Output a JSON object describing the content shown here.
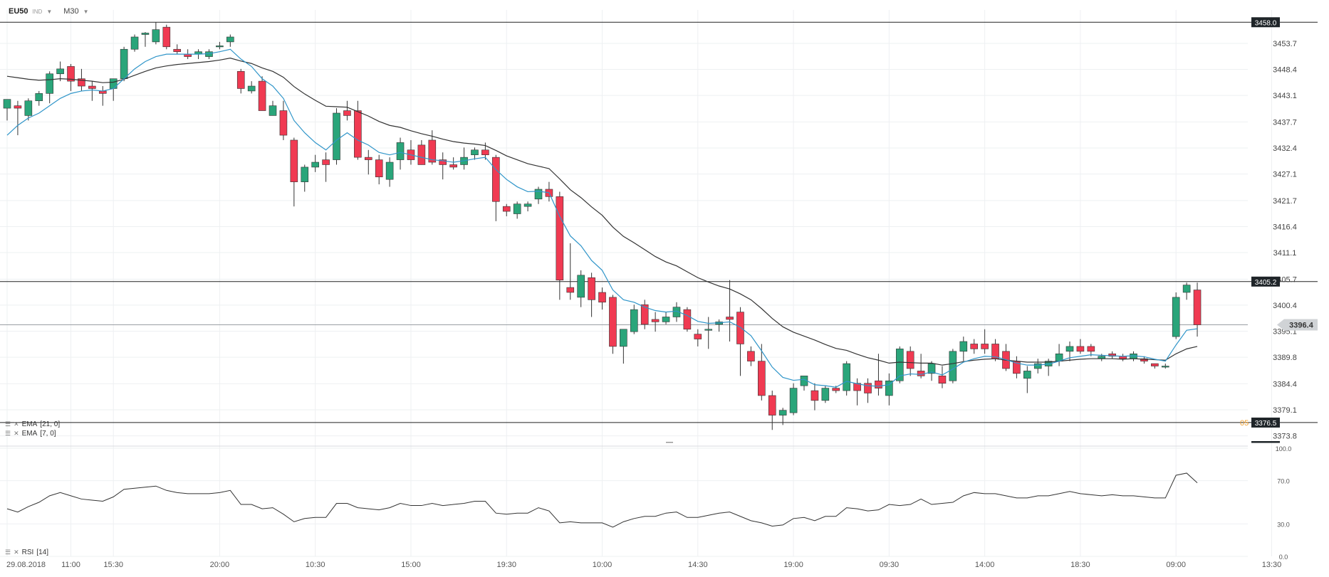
{
  "toolbar": {
    "symbol": "EU50",
    "type": "IND",
    "timeframe": "M30"
  },
  "indicators": [
    {
      "name": "EMA",
      "params": "[21, 0]",
      "color": "#333333"
    },
    {
      "name": "EMA",
      "params": "[7, 0]",
      "color": "#2f95c9"
    }
  ],
  "rsi_label": {
    "name": "RSI",
    "params": "[14]"
  },
  "colors": {
    "bull": "#2aa57a",
    "bear": "#f03a52",
    "ema7": "#2f95c9",
    "ema21": "#333333",
    "grid": "#eef0f2",
    "rsi": "#333333"
  },
  "orange_tag": "05",
  "chart_data": [
    {
      "type": "candlestick",
      "title": "EU50",
      "y_ticks": [
        3453.7,
        3448.4,
        3443.1,
        3437.7,
        3432.4,
        3427.1,
        3421.7,
        3416.4,
        3411.1,
        3405.7,
        3400.4,
        3395.1,
        3389.8,
        3384.4,
        3379.1,
        3373.8
      ],
      "y_tick_labels": [
        "3453.7",
        "3448.4",
        "3443.1",
        "3437.7",
        "3432.4",
        "3427.1",
        "3421.7",
        "3416.4",
        "3411.1",
        "3405.7",
        "3400.4",
        "3395.1",
        "3389.8",
        "3384.4",
        "3379.1",
        "3373.8"
      ],
      "ylim": [
        3372.0,
        3460.5
      ],
      "x_labels": [
        "29.08.2018",
        "11:00",
        "15:30",
        "20:00",
        "10:30",
        "15:00",
        "19:30",
        "10:00",
        "14:30",
        "19:00",
        "09:30",
        "14:00",
        "18:30",
        "09:00",
        "13:30"
      ],
      "x_label_candle_index": [
        0,
        6,
        10,
        20,
        29,
        38,
        47,
        56,
        65,
        74,
        83,
        92,
        101,
        110,
        119
      ],
      "grid": true,
      "horizontal_lines": [
        {
          "value": 3458.0,
          "label": "3458.0",
          "style": "solid"
        },
        {
          "value": 3405.2,
          "label": "3405.2",
          "style": "solid"
        },
        {
          "value": 3376.5,
          "label": "3376.5",
          "style": "solid"
        },
        {
          "value": 3396.4,
          "label": "3396.4",
          "style": "current"
        }
      ],
      "candles": [
        [
          3440.5,
          3442.2,
          3438.0,
          3442.3
        ],
        [
          3441.0,
          3442.0,
          3435.0,
          3440.5
        ],
        [
          3439.0,
          3442.5,
          3438.0,
          3442.0
        ],
        [
          3442.0,
          3444.0,
          3441.0,
          3443.5
        ],
        [
          3443.5,
          3448.0,
          3441.5,
          3447.5
        ],
        [
          3447.5,
          3450.0,
          3446.0,
          3448.5
        ],
        [
          3449.0,
          3449.5,
          3444.0,
          3446.0
        ],
        [
          3446.5,
          3448.5,
          3444.0,
          3445.0
        ],
        [
          3445.0,
          3446.0,
          3442.0,
          3444.5
        ],
        [
          3444.0,
          3445.0,
          3441.0,
          3443.5
        ],
        [
          3444.5,
          3446.5,
          3442.0,
          3446.5
        ],
        [
          3446.5,
          3453.0,
          3446.0,
          3452.5
        ],
        [
          3452.5,
          3455.5,
          3452.0,
          3455.0
        ],
        [
          3455.5,
          3456.0,
          3453.0,
          3455.8
        ],
        [
          3454.0,
          3458.0,
          3453.5,
          3456.5
        ],
        [
          3457.0,
          3457.5,
          3452.5,
          3453.0
        ],
        [
          3452.5,
          3453.5,
          3451.5,
          3452.0
        ],
        [
          3451.5,
          3452.5,
          3450.5,
          3451.0
        ],
        [
          3451.5,
          3452.5,
          3450.5,
          3452.0
        ],
        [
          3451.0,
          3452.5,
          3450.5,
          3452.0
        ],
        [
          3453.0,
          3454.0,
          3452.5,
          3453.2
        ],
        [
          3454.0,
          3455.5,
          3453.0,
          3455.0
        ],
        [
          3448.0,
          3448.5,
          3443.5,
          3444.5
        ],
        [
          3444.0,
          3446.0,
          3443.5,
          3445.0
        ],
        [
          3446.0,
          3447.0,
          3440.0,
          3440.0
        ],
        [
          3439.0,
          3442.0,
          3439.0,
          3441.0
        ],
        [
          3440.0,
          3442.0,
          3434.0,
          3435.0
        ],
        [
          3434.0,
          3434.5,
          3420.5,
          3425.5
        ],
        [
          3425.5,
          3429.0,
          3423.5,
          3428.5
        ],
        [
          3428.5,
          3431.0,
          3427.5,
          3429.5
        ],
        [
          3430.0,
          3431.5,
          3425.5,
          3429.0
        ],
        [
          3430.0,
          3440.5,
          3429.0,
          3439.5
        ],
        [
          3440.0,
          3442.0,
          3438.0,
          3439.0
        ],
        [
          3440.0,
          3442.0,
          3430.0,
          3430.5
        ],
        [
          3430.5,
          3432.0,
          3427.0,
          3430.0
        ],
        [
          3430.0,
          3431.0,
          3425.0,
          3426.5
        ],
        [
          3426.0,
          3430.5,
          3424.5,
          3429.5
        ],
        [
          3430.0,
          3434.5,
          3428.0,
          3433.5
        ],
        [
          3432.0,
          3434.0,
          3429.0,
          3430.0
        ],
        [
          3433.0,
          3434.0,
          3429.0,
          3429.0
        ],
        [
          3434.0,
          3436.0,
          3429.0,
          3429.5
        ],
        [
          3430.0,
          3431.5,
          3426.0,
          3429.0
        ],
        [
          3429.0,
          3430.5,
          3428.0,
          3428.5
        ],
        [
          3429.0,
          3432.5,
          3428.0,
          3430.5
        ],
        [
          3431.0,
          3432.5,
          3430.0,
          3432.0
        ],
        [
          3432.0,
          3433.5,
          3430.0,
          3431.0
        ],
        [
          3430.5,
          3431.0,
          3417.5,
          3421.5
        ],
        [
          3420.5,
          3421.0,
          3418.5,
          3419.5
        ],
        [
          3419.0,
          3421.5,
          3418.0,
          3421.0
        ],
        [
          3420.5,
          3421.5,
          3419.5,
          3421.0
        ],
        [
          3422.0,
          3424.5,
          3421.0,
          3424.0
        ],
        [
          3424.0,
          3425.5,
          3421.5,
          3422.5
        ],
        [
          3422.5,
          3423.5,
          3401.5,
          3405.5
        ],
        [
          3404.0,
          3413.0,
          3401.5,
          3403.0
        ],
        [
          3402.0,
          3407.5,
          3400.0,
          3406.5
        ],
        [
          3406.0,
          3407.0,
          3398.0,
          3401.5
        ],
        [
          3403.0,
          3404.0,
          3399.5,
          3401.0
        ],
        [
          3402.0,
          3402.5,
          3390.5,
          3392.0
        ],
        [
          3392.0,
          3395.5,
          3388.5,
          3395.5
        ],
        [
          3395.0,
          3400.5,
          3394.5,
          3399.5
        ],
        [
          3400.5,
          3401.5,
          3395.5,
          3396.5
        ],
        [
          3397.5,
          3399.0,
          3395.0,
          3397.0
        ],
        [
          3397.0,
          3399.0,
          3396.5,
          3398.0
        ],
        [
          3398.0,
          3401.0,
          3397.0,
          3400.0
        ],
        [
          3399.5,
          3400.0,
          3395.0,
          3395.5
        ],
        [
          3394.5,
          3395.5,
          3392.0,
          3393.5
        ],
        [
          3395.5,
          3398.0,
          3391.5,
          3395.5
        ],
        [
          3396.5,
          3397.5,
          3395.0,
          3397.0
        ],
        [
          3398.0,
          3405.5,
          3393.0,
          3397.5
        ],
        [
          3399.0,
          3400.0,
          3386.0,
          3392.5
        ],
        [
          3391.0,
          3392.0,
          3388.0,
          3389.0
        ],
        [
          3389.0,
          3392.5,
          3381.0,
          3382.0
        ],
        [
          3382.0,
          3383.0,
          3375.0,
          3378.0
        ],
        [
          3378.0,
          3379.5,
          3376.0,
          3379.0
        ],
        [
          3378.5,
          3384.5,
          3378.0,
          3383.5
        ],
        [
          3384.0,
          3386.0,
          3383.0,
          3386.0
        ],
        [
          3383.0,
          3384.5,
          3379.0,
          3381.0
        ],
        [
          3381.0,
          3384.0,
          3380.5,
          3383.5
        ],
        [
          3383.5,
          3384.0,
          3382.5,
          3383.0
        ],
        [
          3383.0,
          3389.0,
          3382.0,
          3388.5
        ],
        [
          3384.5,
          3385.5,
          3380.0,
          3383.0
        ],
        [
          3384.5,
          3385.5,
          3380.5,
          3382.5
        ],
        [
          3385.0,
          3390.5,
          3382.0,
          3383.5
        ],
        [
          3382.0,
          3386.5,
          3380.0,
          3385.0
        ],
        [
          3385.0,
          3392.0,
          3384.5,
          3391.5
        ],
        [
          3391.0,
          3392.0,
          3386.0,
          3387.5
        ],
        [
          3387.0,
          3390.5,
          3385.5,
          3386.0
        ],
        [
          3386.5,
          3389.0,
          3385.0,
          3388.5
        ],
        [
          3386.0,
          3388.0,
          3383.5,
          3384.5
        ],
        [
          3385.0,
          3391.5,
          3384.5,
          3391.0
        ],
        [
          3391.0,
          3394.0,
          3389.0,
          3393.0
        ],
        [
          3392.5,
          3393.5,
          3390.5,
          3391.5
        ],
        [
          3392.5,
          3395.5,
          3390.5,
          3391.5
        ],
        [
          3392.5,
          3393.5,
          3389.0,
          3389.5
        ],
        [
          3391.0,
          3392.5,
          3387.0,
          3387.5
        ],
        [
          3389.0,
          3390.0,
          3385.5,
          3386.5
        ],
        [
          3385.5,
          3388.0,
          3382.5,
          3387.0
        ],
        [
          3387.5,
          3389.5,
          3386.5,
          3388.5
        ],
        [
          3388.0,
          3389.5,
          3386.0,
          3389.0
        ],
        [
          3389.0,
          3392.5,
          3388.0,
          3390.5
        ],
        [
          3391.0,
          3393.0,
          3389.0,
          3392.0
        ],
        [
          3392.0,
          3393.5,
          3390.5,
          3391.0
        ],
        [
          3392.0,
          3392.5,
          3390.0,
          3391.0
        ],
        [
          3389.5,
          3390.5,
          3389.0,
          3390.0
        ],
        [
          3390.5,
          3391.0,
          3389.5,
          3390.0
        ],
        [
          3390.0,
          3390.5,
          3389.0,
          3389.5
        ],
        [
          3389.5,
          3391.0,
          3389.0,
          3390.5
        ],
        [
          3389.5,
          3390.0,
          3388.5,
          3389.0
        ],
        [
          3388.5,
          3388.5,
          3387.5,
          3388.0
        ],
        [
          3388.0,
          3388.5,
          3387.5,
          3388.0
        ],
        [
          3394.0,
          3403.0,
          3393.5,
          3402.0
        ],
        [
          3403.0,
          3405.0,
          3401.5,
          3404.5
        ],
        [
          3403.5,
          3405.0,
          3394.0,
          3396.4
        ]
      ],
      "ema_7": [
        3435.0,
        3437.0,
        3438.5,
        3439.5,
        3441.0,
        3442.5,
        3443.5,
        3444.0,
        3444.2,
        3444.0,
        3444.5,
        3446.5,
        3448.5,
        3450.0,
        3451.0,
        3451.5,
        3451.5,
        3451.5,
        3451.5,
        3451.6,
        3452.0,
        3452.5,
        3450.5,
        3449.0,
        3446.5,
        3445.0,
        3442.5,
        3438.0,
        3435.5,
        3433.5,
        3432.0,
        3434.0,
        3435.5,
        3434.0,
        3433.0,
        3431.5,
        3431.0,
        3431.5,
        3431.0,
        3430.5,
        3430.0,
        3429.8,
        3429.5,
        3429.8,
        3430.2,
        3430.5,
        3428.0,
        3426.0,
        3424.5,
        3423.5,
        3423.6,
        3423.3,
        3418.5,
        3414.5,
        3412.5,
        3409.5,
        3407.5,
        3403.5,
        3401.5,
        3401.0,
        3400.0,
        3399.3,
        3399.0,
        3399.2,
        3398.3,
        3397.1,
        3396.7,
        3396.8,
        3397.0,
        3395.9,
        3394.2,
        3391.1,
        3387.8,
        3385.7,
        3385.1,
        3385.3,
        3384.2,
        3384.0,
        3383.7,
        3384.9,
        3384.4,
        3384.0,
        3383.9,
        3384.2,
        3386.0,
        3386.4,
        3386.3,
        3386.8,
        3386.2,
        3387.4,
        3388.8,
        3389.5,
        3390.0,
        3389.9,
        3389.3,
        3388.6,
        3388.2,
        3388.2,
        3388.4,
        3389.0,
        3389.7,
        3390.0,
        3390.3,
        3390.2,
        3390.1,
        3390.0,
        3390.1,
        3389.9,
        3389.4,
        3389.0,
        3392.3,
        3395.3,
        3395.6
      ],
      "ema_21": [
        3447.0,
        3446.7,
        3446.4,
        3446.2,
        3446.3,
        3446.5,
        3446.4,
        3446.2,
        3446.0,
        3445.7,
        3445.8,
        3446.4,
        3447.2,
        3448.0,
        3448.7,
        3449.1,
        3449.4,
        3449.6,
        3449.8,
        3450.0,
        3450.3,
        3450.7,
        3450.1,
        3449.6,
        3448.7,
        3448.0,
        3446.8,
        3444.9,
        3443.4,
        3442.1,
        3440.9,
        3440.8,
        3440.7,
        3439.8,
        3438.9,
        3437.8,
        3437.0,
        3436.6,
        3435.9,
        3435.3,
        3434.8,
        3434.2,
        3433.7,
        3433.4,
        3433.2,
        3432.9,
        3431.9,
        3430.8,
        3430.0,
        3429.2,
        3428.7,
        3428.2,
        3426.1,
        3423.9,
        3422.3,
        3420.4,
        3418.7,
        3416.3,
        3414.4,
        3413.1,
        3411.7,
        3410.3,
        3409.2,
        3408.4,
        3407.2,
        3406.0,
        3405.1,
        3404.3,
        3403.7,
        3402.7,
        3401.5,
        3399.7,
        3397.7,
        3396.0,
        3394.9,
        3394.1,
        3393.3,
        3392.4,
        3391.6,
        3391.2,
        3390.4,
        3389.7,
        3389.2,
        3388.6,
        3388.8,
        3388.7,
        3388.6,
        3388.6,
        3388.2,
        3388.5,
        3388.9,
        3389.2,
        3389.4,
        3389.5,
        3389.2,
        3389.0,
        3388.8,
        3388.8,
        3388.8,
        3389.0,
        3389.2,
        3389.4,
        3389.5,
        3389.5,
        3389.5,
        3389.4,
        3389.5,
        3389.4,
        3389.3,
        3389.2,
        3390.5,
        3391.5,
        3392.0
      ]
    },
    {
      "type": "line",
      "title": "RSI [14]",
      "y_ticks": [
        100.0,
        70.0,
        30.0,
        0.0
      ],
      "y_tick_labels": [
        "100.0",
        "70.0",
        "30.0",
        "0.0"
      ],
      "ylim": [
        0,
        100
      ],
      "series": [
        {
          "name": "RSI",
          "values": [
            44,
            41,
            46,
            50,
            56,
            59,
            56,
            53,
            52,
            51,
            55,
            62,
            63,
            64,
            65,
            61,
            59,
            58,
            58,
            58,
            59,
            61,
            48,
            48,
            44,
            45,
            39,
            32,
            35,
            36,
            36,
            49,
            49,
            45,
            44,
            43,
            45,
            49,
            47,
            47,
            49,
            47,
            48,
            49,
            51,
            51,
            40,
            39,
            40,
            40,
            45,
            42,
            31,
            32,
            31,
            31,
            31,
            27,
            32,
            35,
            37,
            37,
            40,
            41,
            36,
            36,
            38,
            40,
            41,
            37,
            33,
            31,
            28,
            29,
            35,
            36,
            33,
            37,
            37,
            45,
            44,
            42,
            43,
            48,
            47,
            48,
            53,
            48,
            49,
            50,
            56,
            59,
            58,
            58,
            56,
            54,
            54,
            56,
            56,
            58,
            60,
            58,
            57,
            56,
            57,
            56,
            56,
            55,
            54,
            54,
            75,
            77,
            68
          ]
        }
      ]
    }
  ]
}
